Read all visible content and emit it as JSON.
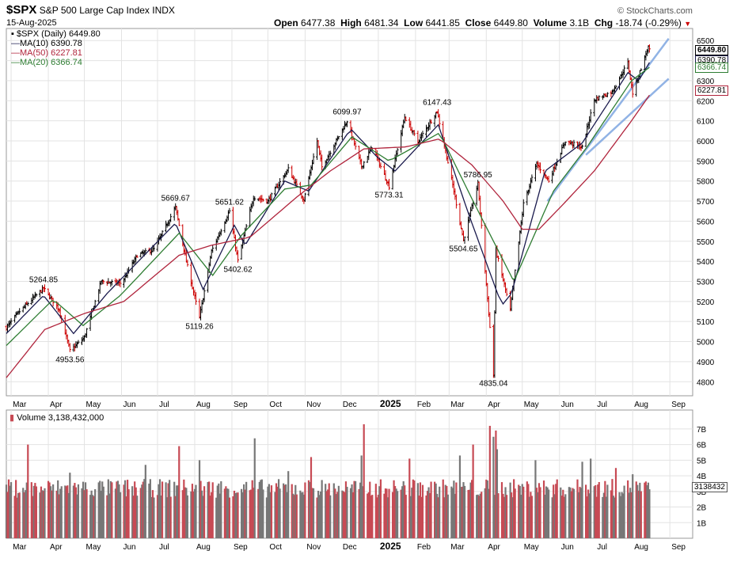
{
  "header": {
    "symbol": "$SPX",
    "name": "S&P 500 Large Cap Index",
    "exchange": "INDX",
    "date": "15-Aug-2025",
    "brand": "© StockCharts.com",
    "open_label": "Open",
    "open": "6477.38",
    "high_label": "High",
    "high": "6481.34",
    "low_label": "Low",
    "low": "6441.85",
    "close_label": "Close",
    "close": "6449.80",
    "volume_label": "Volume",
    "volume": "3.1B",
    "chg_label": "Chg",
    "chg": "-18.74 (-0.29%)"
  },
  "legend": {
    "price": "$SPX (Daily) 6449.80",
    "ma10": "MA(10) 6390.78",
    "ma50": "MA(50) 6227.81",
    "ma20": "MA(20) 6366.74"
  },
  "tags": {
    "price": "6449.80",
    "ma10": "6390.78",
    "ma20": "6366.74",
    "ma50": "6227.81",
    "volume": "3138432"
  },
  "volume_legend": "Volume 3,138,432,000",
  "colors": {
    "price_up": "#000000",
    "price_down": "#cc0000",
    "ma10": "#1a1a4d",
    "ma20": "#2e7d32",
    "ma50": "#b0243c",
    "trendline": "#7ea6e0",
    "vol_up": "#777777",
    "vol_down": "#c74a54"
  },
  "chart_data": [
    {
      "type": "line",
      "title": "$SPX (Daily)",
      "y_ticks": [
        4800,
        4900,
        5000,
        5100,
        5200,
        5300,
        5400,
        5500,
        5600,
        5700,
        5800,
        5900,
        6000,
        6100,
        6200,
        6300,
        6400,
        6500
      ],
      "ylim": [
        4730,
        6560
      ],
      "x_ticks": [
        "Mar",
        "Apr",
        "May",
        "Jun",
        "Jul",
        "Aug",
        "Sep",
        "Oct",
        "Nov",
        "Dec",
        "2025",
        "Feb",
        "Mar",
        "Apr",
        "May",
        "Jun",
        "Jul",
        "Aug",
        "Sep"
      ],
      "x_start": "2024-02-26",
      "x_end": "2025-09-20",
      "series": [
        {
          "name": "$SPX",
          "points": [
            [
              "2024-02-26",
              5070
            ],
            [
              "2024-03-08",
              5150
            ],
            [
              "2024-03-20",
              5220
            ],
            [
              "2024-03-28",
              5264.85
            ],
            [
              "2024-04-10",
              5160
            ],
            [
              "2024-04-19",
              4953.56
            ],
            [
              "2024-05-01",
              5020
            ],
            [
              "2024-05-15",
              5300
            ],
            [
              "2024-06-01",
              5290
            ],
            [
              "2024-06-14",
              5430
            ],
            [
              "2024-06-28",
              5460
            ],
            [
              "2024-07-16",
              5669.67
            ],
            [
              "2024-07-25",
              5400
            ],
            [
              "2024-08-05",
              5119.26
            ],
            [
              "2024-08-15",
              5450
            ],
            [
              "2024-08-30",
              5651.62
            ],
            [
              "2024-09-06",
              5402.62
            ],
            [
              "2024-09-19",
              5720
            ],
            [
              "2024-10-01",
              5700
            ],
            [
              "2024-10-18",
              5860
            ],
            [
              "2024-10-31",
              5705
            ],
            [
              "2024-11-11",
              6000
            ],
            [
              "2024-11-15",
              5870
            ],
            [
              "2024-12-06",
              6099.97
            ],
            [
              "2024-12-18",
              5872
            ],
            [
              "2024-12-27",
              5970
            ],
            [
              "2025-01-10",
              5773.31
            ],
            [
              "2025-01-23",
              6120
            ],
            [
              "2025-02-03",
              5995
            ],
            [
              "2025-02-19",
              6147.43
            ],
            [
              "2025-03-04",
              5780
            ],
            [
              "2025-03-13",
              5504.65
            ],
            [
              "2025-03-25",
              5786.95
            ],
            [
              "2025-04-04",
              5070
            ],
            [
              "2025-04-07",
              4835.04
            ],
            [
              "2025-04-09",
              5456
            ],
            [
              "2025-04-21",
              5158
            ],
            [
              "2025-05-02",
              5686
            ],
            [
              "2025-05-13",
              5886
            ],
            [
              "2025-05-23",
              5802
            ],
            [
              "2025-06-06",
              6000
            ],
            [
              "2025-06-20",
              5967
            ],
            [
              "2025-06-30",
              6205
            ],
            [
              "2025-07-15",
              6245
            ],
            [
              "2025-07-28",
              6390
            ],
            [
              "2025-08-01",
              6238
            ],
            [
              "2025-08-14",
              6468
            ],
            [
              "2025-08-15",
              6449.8
            ]
          ]
        },
        {
          "name": "MA(10)",
          "points": [
            [
              "2024-02-26",
              5040
            ],
            [
              "2024-03-28",
              5230
            ],
            [
              "2024-04-22",
              5040
            ],
            [
              "2024-05-20",
              5240
            ],
            [
              "2024-07-16",
              5590
            ],
            [
              "2024-08-08",
              5260
            ],
            [
              "2024-09-03",
              5580
            ],
            [
              "2024-09-12",
              5480
            ],
            [
              "2024-10-15",
              5800
            ],
            [
              "2024-11-04",
              5750
            ],
            [
              "2024-12-09",
              6060
            ],
            [
              "2024-12-31",
              5920
            ],
            [
              "2025-01-15",
              5850
            ],
            [
              "2025-02-20",
              6080
            ],
            [
              "2025-03-17",
              5640
            ],
            [
              "2025-04-14",
              5180
            ],
            [
              "2025-04-22",
              5240
            ],
            [
              "2025-05-20",
              5850
            ],
            [
              "2025-06-20",
              5990
            ],
            [
              "2025-07-28",
              6340
            ],
            [
              "2025-08-06",
              6300
            ],
            [
              "2025-08-15",
              6390.78
            ]
          ]
        },
        {
          "name": "MA(20)",
          "points": [
            [
              "2024-02-26",
              4980
            ],
            [
              "2024-04-05",
              5210
            ],
            [
              "2024-04-30",
              5080
            ],
            [
              "2024-05-31",
              5230
            ],
            [
              "2024-07-19",
              5540
            ],
            [
              "2024-08-16",
              5330
            ],
            [
              "2024-09-09",
              5530
            ],
            [
              "2024-10-15",
              5760
            ],
            [
              "2024-11-06",
              5780
            ],
            [
              "2024-12-10",
              6020
            ],
            [
              "2025-01-10",
              5900
            ],
            [
              "2025-02-21",
              6040
            ],
            [
              "2025-03-21",
              5700
            ],
            [
              "2025-04-24",
              5300
            ],
            [
              "2025-05-27",
              5750
            ],
            [
              "2025-06-24",
              5970
            ],
            [
              "2025-07-31",
              6300
            ],
            [
              "2025-08-15",
              6366.74
            ]
          ]
        },
        {
          "name": "MA(50)",
          "points": [
            [
              "2024-02-26",
              4820
            ],
            [
              "2024-03-29",
              5060
            ],
            [
              "2024-05-01",
              5140
            ],
            [
              "2024-06-03",
              5200
            ],
            [
              "2024-07-19",
              5430
            ],
            [
              "2024-08-15",
              5480
            ],
            [
              "2024-09-16",
              5520
            ],
            [
              "2024-10-25",
              5720
            ],
            [
              "2024-11-22",
              5850
            ],
            [
              "2024-12-20",
              5960
            ],
            [
              "2025-01-24",
              5970
            ],
            [
              "2025-02-21",
              6010
            ],
            [
              "2025-03-20",
              5880
            ],
            [
              "2025-04-15",
              5700
            ],
            [
              "2025-05-01",
              5560
            ],
            [
              "2025-05-15",
              5560
            ],
            [
              "2025-06-05",
              5690
            ],
            [
              "2025-06-30",
              5850
            ],
            [
              "2025-07-31",
              6100
            ],
            [
              "2025-08-15",
              6227.81
            ]
          ]
        },
        {
          "name": "trendline-upper",
          "points": [
            [
              "2025-05-22",
              5700
            ],
            [
              "2025-08-31",
              6510
            ]
          ]
        },
        {
          "name": "trendline-lower",
          "points": [
            [
              "2025-06-23",
              5930
            ],
            [
              "2025-08-31",
              6310
            ]
          ]
        }
      ],
      "annotations": [
        {
          "x": "2024-03-28",
          "y": 5264.85,
          "text": "5264.85",
          "pos": "above"
        },
        {
          "x": "2024-04-19",
          "y": 4953.56,
          "text": "4953.56",
          "pos": "below"
        },
        {
          "x": "2024-07-16",
          "y": 5669.67,
          "text": "5669.67",
          "pos": "above"
        },
        {
          "x": "2024-08-05",
          "y": 5119.26,
          "text": "5119.26",
          "pos": "below"
        },
        {
          "x": "2024-08-30",
          "y": 5651.62,
          "text": "5651.62",
          "pos": "above"
        },
        {
          "x": "2024-09-06",
          "y": 5402.62,
          "text": "5402.62",
          "pos": "below"
        },
        {
          "x": "2024-12-06",
          "y": 6099.97,
          "text": "6099.97",
          "pos": "above"
        },
        {
          "x": "2025-01-10",
          "y": 5773.31,
          "text": "5773.31",
          "pos": "below"
        },
        {
          "x": "2025-02-19",
          "y": 6147.43,
          "text": "6147.43",
          "pos": "above"
        },
        {
          "x": "2025-03-25",
          "y": 5786.95,
          "text": "5786.95",
          "pos": "above"
        },
        {
          "x": "2025-03-13",
          "y": 5504.65,
          "text": "5504.65",
          "pos": "below"
        },
        {
          "x": "2025-04-07",
          "y": 4835.04,
          "text": "4835.04",
          "pos": "below"
        }
      ]
    },
    {
      "type": "bar",
      "title": "Volume",
      "y_ticks": [
        "1B",
        "2B",
        "3B",
        "4B",
        "5B",
        "6B",
        "7B"
      ],
      "ylim": [
        0,
        7.3
      ],
      "unit": "billions",
      "spikes": [
        {
          "x": "2024-03-15",
          "v": 6.0
        },
        {
          "x": "2024-04-19",
          "v": 4.2
        },
        {
          "x": "2024-06-21",
          "v": 4.7
        },
        {
          "x": "2024-07-19",
          "v": 5.9
        },
        {
          "x": "2024-08-05",
          "v": 5.0
        },
        {
          "x": "2024-09-20",
          "v": 6.4
        },
        {
          "x": "2024-10-18",
          "v": 4.3
        },
        {
          "x": "2024-11-06",
          "v": 5.2
        },
        {
          "x": "2024-12-20",
          "v": 7.3
        },
        {
          "x": "2024-12-18",
          "v": 5.3
        },
        {
          "x": "2025-01-27",
          "v": 5.1
        },
        {
          "x": "2025-03-10",
          "v": 5.3
        },
        {
          "x": "2025-03-21",
          "v": 6.0
        },
        {
          "x": "2025-04-04",
          "v": 7.2
        },
        {
          "x": "2025-04-07",
          "v": 6.5
        },
        {
          "x": "2025-04-09",
          "v": 6.9
        },
        {
          "x": "2025-04-10",
          "v": 5.7
        },
        {
          "x": "2025-05-12",
          "v": 5.0
        },
        {
          "x": "2025-06-20",
          "v": 4.9
        },
        {
          "x": "2025-06-27",
          "v": 5.1
        },
        {
          "x": "2025-07-18",
          "v": 4.5
        },
        {
          "x": "2025-08-01",
          "v": 4.1
        }
      ],
      "last_value": 3.138432
    }
  ]
}
